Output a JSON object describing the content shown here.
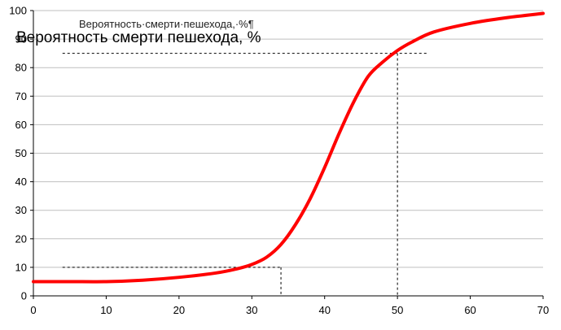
{
  "chart_data": {
    "type": "line",
    "title": "Вероятность смерти пешехода, %",
    "title_overlay": "Вероятность·смерти·пешехода,·%¶",
    "xlabel": "",
    "ylabel": "",
    "xlim": [
      0,
      70
    ],
    "ylim": [
      0,
      100
    ],
    "x_ticks": [
      0,
      10,
      20,
      30,
      40,
      50,
      60,
      70
    ],
    "y_ticks": [
      0,
      10,
      20,
      30,
      40,
      50,
      60,
      70,
      80,
      90,
      100
    ],
    "grid": "horizontal",
    "legend": "none",
    "series": [
      {
        "color": "#ff0000",
        "x": [
          0,
          5,
          10,
          15,
          20,
          25,
          28,
          30,
          32,
          34,
          36,
          38,
          40,
          42,
          44,
          46,
          48,
          50,
          52,
          55,
          60,
          65,
          70
        ],
        "y": [
          5,
          5,
          5,
          5.5,
          6.5,
          8,
          9.5,
          11,
          13.5,
          18,
          25,
          34,
          45,
          57,
          68,
          77,
          82,
          86,
          89,
          92.5,
          95.5,
          97.5,
          99
        ]
      }
    ],
    "reference_lines": [
      {
        "x": 34,
        "y": 10,
        "style": "dashed"
      },
      {
        "x": 50,
        "y": 85,
        "style": "dashed"
      }
    ]
  },
  "colors": {
    "curve": "#ff0000",
    "grid": "#bfbfbf",
    "axis": "#000000",
    "reference": "#000000"
  }
}
